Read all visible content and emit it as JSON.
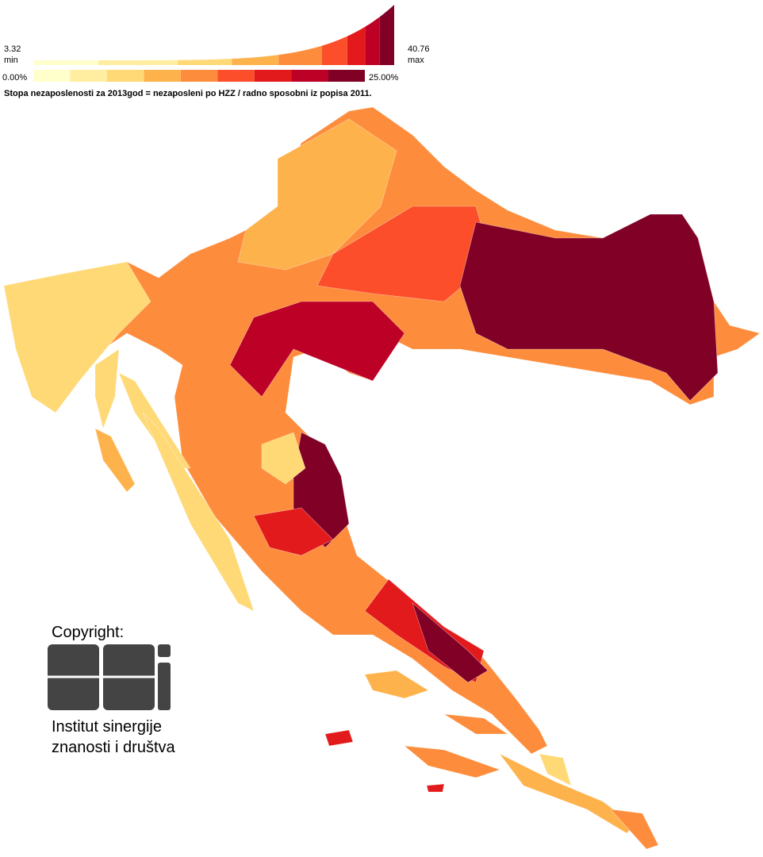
{
  "legend": {
    "min_value": 3.32,
    "min_label": "min",
    "max_value": 40.76,
    "max_label": "max",
    "scale_start": {
      "value": 0,
      "label": "0.00%"
    },
    "scale_end": {
      "value": 25,
      "label": "25.00%"
    },
    "colors": [
      "#ffffcc",
      "#ffeda0",
      "#fed976",
      "#feb24c",
      "#fd8d3c",
      "#fc4e2a",
      "#e31a1c",
      "#bd0026",
      "#800026"
    ],
    "caption": "Stopa nezaposlenosti za 2013god = nezaposleni po HZZ / radno sposobni iz popisa 2011."
  },
  "copyright": {
    "label": "Copyright:",
    "institute": [
      "Institut sinergije",
      "znanosti i društva"
    ]
  }
}
